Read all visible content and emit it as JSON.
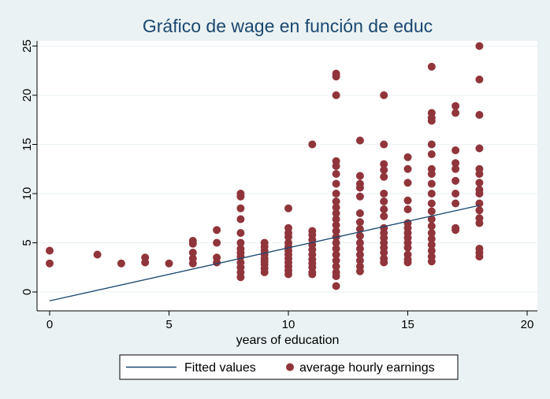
{
  "chart_data": {
    "type": "scatter",
    "title": "Gráfico de wage en función de educ",
    "xlabel": "years of education",
    "ylabel": "",
    "xlim": [
      0,
      20
    ],
    "ylim": [
      0,
      25
    ],
    "x_ticks": [
      0,
      5,
      10,
      15,
      20
    ],
    "y_ticks": [
      0,
      5,
      10,
      15,
      20,
      25
    ],
    "grid": "horizontal",
    "legend_position": "bottom",
    "colors": {
      "line": "#1a476f",
      "points": "#90353b",
      "plot_bg": "#ffffff",
      "outer_bg": "#eaf2f3",
      "grid": "#eaf2f3"
    },
    "series": [
      {
        "name": "Fitted values",
        "type": "line",
        "x": [
          0,
          18
        ],
        "y": [
          -0.9,
          8.8
        ]
      },
      {
        "name": "average hourly earnings",
        "type": "scatter",
        "points": [
          [
            0,
            4.2
          ],
          [
            0,
            2.9
          ],
          [
            2,
            3.8
          ],
          [
            3,
            2.9
          ],
          [
            4,
            3.5
          ],
          [
            4,
            3.0
          ],
          [
            5,
            2.9
          ],
          [
            6,
            5.2
          ],
          [
            6,
            4.9
          ],
          [
            6,
            4.0
          ],
          [
            6,
            3.4
          ],
          [
            6,
            2.9
          ],
          [
            7,
            6.3
          ],
          [
            7,
            5.0
          ],
          [
            7,
            3.5
          ],
          [
            7,
            3.0
          ],
          [
            8,
            10.0
          ],
          [
            8,
            9.7
          ],
          [
            8,
            8.5
          ],
          [
            8,
            7.4
          ],
          [
            8,
            6.0
          ],
          [
            8,
            5.0
          ],
          [
            8,
            4.4
          ],
          [
            8,
            4.0
          ],
          [
            8,
            3.6
          ],
          [
            8,
            3.0
          ],
          [
            8,
            2.5
          ],
          [
            8,
            2.0
          ],
          [
            8,
            1.5
          ],
          [
            9,
            5.0
          ],
          [
            9,
            4.6
          ],
          [
            9,
            4.2
          ],
          [
            9,
            3.8
          ],
          [
            9,
            3.4
          ],
          [
            9,
            3.1
          ],
          [
            9,
            2.8
          ],
          [
            9,
            2.4
          ],
          [
            9,
            2.0
          ],
          [
            10,
            8.5
          ],
          [
            10,
            6.5
          ],
          [
            10,
            6.0
          ],
          [
            10,
            5.6
          ],
          [
            10,
            5.0
          ],
          [
            10,
            4.6
          ],
          [
            10,
            4.2
          ],
          [
            10,
            3.8
          ],
          [
            10,
            3.4
          ],
          [
            10,
            3.0
          ],
          [
            10,
            2.6
          ],
          [
            10,
            2.2
          ],
          [
            10,
            1.8
          ],
          [
            11,
            15.0
          ],
          [
            11,
            6.2
          ],
          [
            11,
            5.8
          ],
          [
            11,
            5.3
          ],
          [
            11,
            4.8
          ],
          [
            11,
            4.3
          ],
          [
            11,
            3.8
          ],
          [
            11,
            3.3
          ],
          [
            11,
            2.9
          ],
          [
            11,
            2.5
          ],
          [
            11,
            2.0
          ],
          [
            11,
            1.8
          ],
          [
            12,
            22.2
          ],
          [
            12,
            21.9
          ],
          [
            12,
            20.0
          ],
          [
            12,
            13.3
          ],
          [
            12,
            12.8
          ],
          [
            12,
            12.0
          ],
          [
            12,
            11.0
          ],
          [
            12,
            10.0
          ],
          [
            12,
            9.2
          ],
          [
            12,
            8.6
          ],
          [
            12,
            8.0
          ],
          [
            12,
            7.4
          ],
          [
            12,
            6.8
          ],
          [
            12,
            6.2
          ],
          [
            12,
            5.6
          ],
          [
            12,
            5.0
          ],
          [
            12,
            4.4
          ],
          [
            12,
            3.8
          ],
          [
            12,
            3.2
          ],
          [
            12,
            2.6
          ],
          [
            12,
            2.0
          ],
          [
            12,
            1.6
          ],
          [
            12,
            0.6
          ],
          [
            13,
            15.4
          ],
          [
            13,
            11.8
          ],
          [
            13,
            11.0
          ],
          [
            13,
            10.6
          ],
          [
            13,
            9.7
          ],
          [
            13,
            8.0
          ],
          [
            13,
            7.1
          ],
          [
            13,
            6.4
          ],
          [
            13,
            5.7
          ],
          [
            13,
            5.0
          ],
          [
            13,
            4.4
          ],
          [
            13,
            3.8
          ],
          [
            13,
            3.2
          ],
          [
            13,
            2.6
          ],
          [
            13,
            2.1
          ],
          [
            14,
            20.0
          ],
          [
            14,
            15.0
          ],
          [
            14,
            13.0
          ],
          [
            14,
            12.4
          ],
          [
            14,
            11.7
          ],
          [
            14,
            10.0
          ],
          [
            14,
            9.2
          ],
          [
            14,
            8.4
          ],
          [
            14,
            7.7
          ],
          [
            14,
            6.5
          ],
          [
            14,
            6.0
          ],
          [
            14,
            5.5
          ],
          [
            14,
            5.0
          ],
          [
            14,
            4.5
          ],
          [
            14,
            4.0
          ],
          [
            14,
            3.4
          ],
          [
            14,
            3.0
          ],
          [
            15,
            13.7
          ],
          [
            15,
            12.5
          ],
          [
            15,
            11.1
          ],
          [
            15,
            9.3
          ],
          [
            15,
            8.4
          ],
          [
            15,
            7.0
          ],
          [
            15,
            6.5
          ],
          [
            15,
            6.0
          ],
          [
            15,
            5.5
          ],
          [
            15,
            5.0
          ],
          [
            15,
            4.5
          ],
          [
            15,
            3.8
          ],
          [
            15,
            3.3
          ],
          [
            15,
            3.0
          ],
          [
            16,
            22.9
          ],
          [
            16,
            18.2
          ],
          [
            16,
            17.7
          ],
          [
            16,
            17.4
          ],
          [
            16,
            15.0
          ],
          [
            16,
            14.0
          ],
          [
            16,
            12.5
          ],
          [
            16,
            12.0
          ],
          [
            16,
            11.0
          ],
          [
            16,
            10.0
          ],
          [
            16,
            9.0
          ],
          [
            16,
            8.2
          ],
          [
            16,
            7.4
          ],
          [
            16,
            6.7
          ],
          [
            16,
            6.0
          ],
          [
            16,
            5.4
          ],
          [
            16,
            4.8
          ],
          [
            16,
            4.2
          ],
          [
            16,
            3.6
          ],
          [
            16,
            3.1
          ],
          [
            17,
            18.9
          ],
          [
            17,
            18.2
          ],
          [
            17,
            14.4
          ],
          [
            17,
            13.1
          ],
          [
            17,
            12.5
          ],
          [
            17,
            11.3
          ],
          [
            17,
            10.0
          ],
          [
            17,
            9.0
          ],
          [
            17,
            6.5
          ],
          [
            17,
            6.3
          ],
          [
            18,
            25.0
          ],
          [
            18,
            21.6
          ],
          [
            18,
            18.0
          ],
          [
            18,
            14.6
          ],
          [
            18,
            12.5
          ],
          [
            18,
            12.0
          ],
          [
            18,
            11.1
          ],
          [
            18,
            10.4
          ],
          [
            18,
            10.0
          ],
          [
            18,
            9.0
          ],
          [
            18,
            8.3
          ],
          [
            18,
            7.5
          ],
          [
            18,
            7.0
          ],
          [
            18,
            4.4
          ],
          [
            18,
            4.0
          ],
          [
            18,
            3.6
          ]
        ]
      }
    ]
  }
}
